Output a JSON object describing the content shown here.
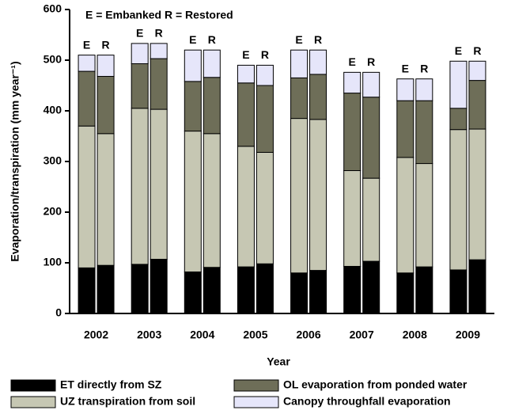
{
  "chart_data": {
    "type": "grouped_stacked_bar",
    "annotation": "E = Embanked  R = Restored",
    "xlabel": "Year",
    "ylabel": "Evaporation/transpiration (mm year⁻¹)",
    "categories": [
      "2002",
      "2003",
      "2004",
      "2005",
      "2006",
      "2007",
      "2008",
      "2009"
    ],
    "stacks": [
      "E",
      "R"
    ],
    "series": [
      {
        "name": "ET directly from SZ",
        "color": "#000000",
        "values": [
          [
            90,
            97,
            82,
            92,
            80,
            93,
            80,
            86
          ],
          [
            95,
            107,
            91,
            98,
            85,
            103,
            92,
            106
          ]
        ]
      },
      {
        "name": "UZ transpiration from soil",
        "color": "#c6c7b3",
        "values": [
          [
            280,
            308,
            278,
            238,
            305,
            189,
            228,
            277
          ],
          [
            260,
            296,
            264,
            220,
            298,
            164,
            204,
            258
          ]
        ]
      },
      {
        "name": "OL evaporation from ponded water",
        "color": "#6e6e58",
        "values": [
          [
            108,
            88,
            98,
            125,
            80,
            153,
            112,
            42
          ],
          [
            113,
            100,
            111,
            132,
            89,
            160,
            124,
            96
          ]
        ]
      },
      {
        "name": "Canopy throughfall evaporation",
        "color": "#e6e6fa",
        "values": [
          [
            32,
            40,
            62,
            35,
            55,
            41,
            43,
            93
          ],
          [
            42,
            30,
            54,
            40,
            48,
            49,
            43,
            38
          ]
        ]
      }
    ],
    "ylim": [
      0,
      600
    ],
    "yticks": [
      0,
      100,
      200,
      300,
      400,
      500,
      600
    ],
    "legend": "bottom"
  }
}
